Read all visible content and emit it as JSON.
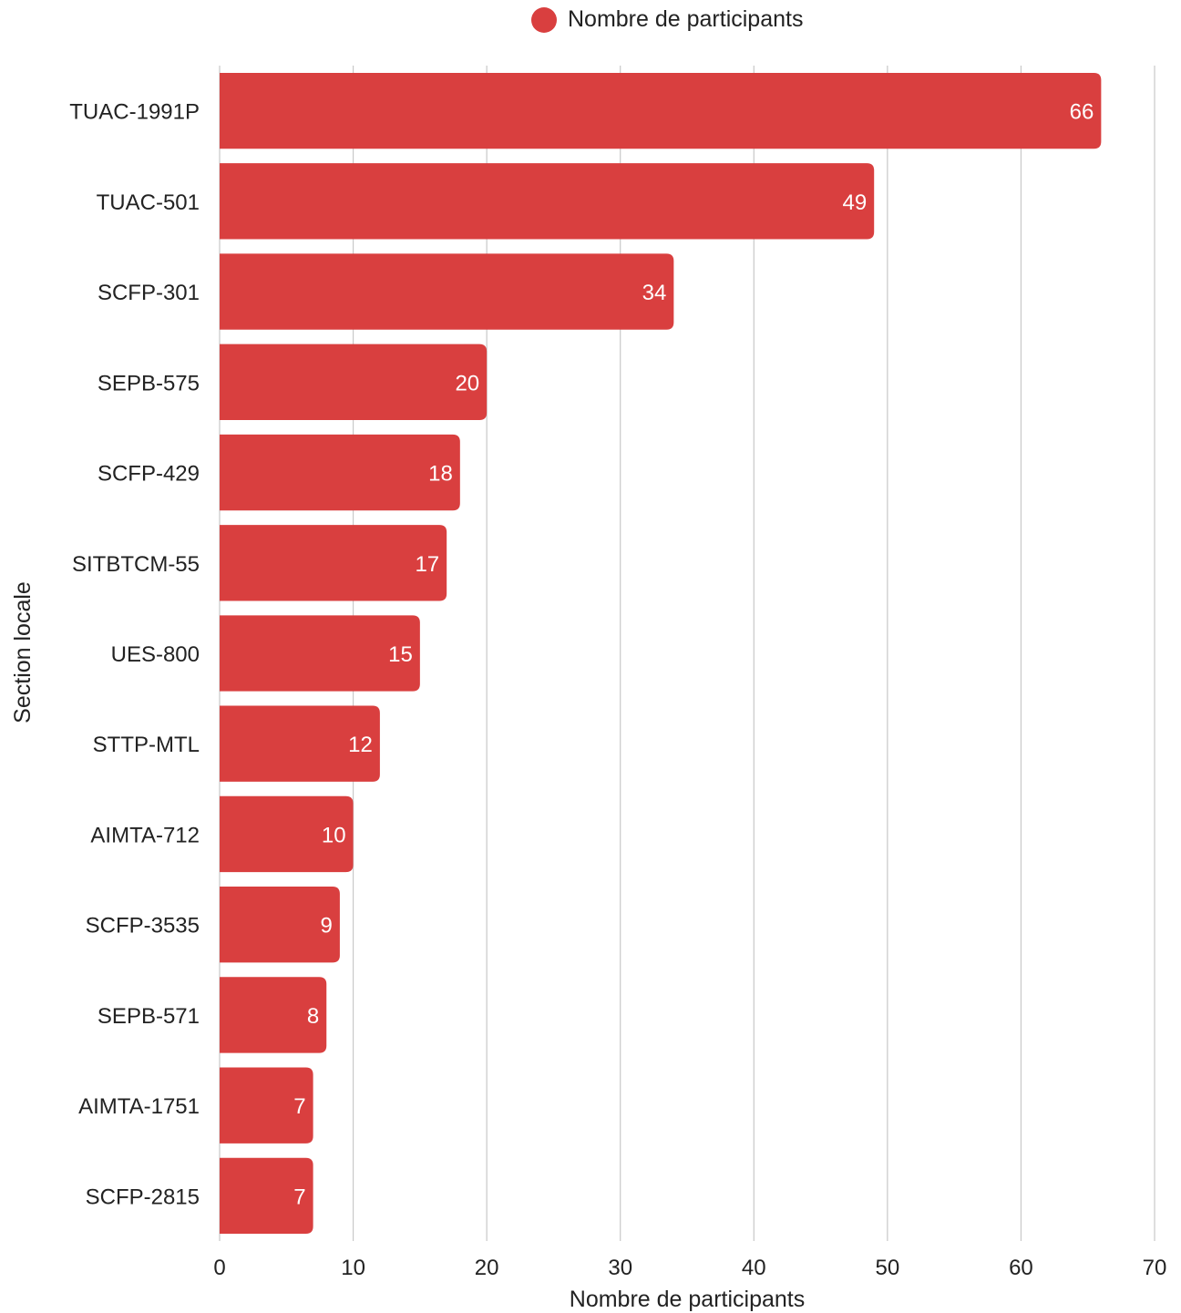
{
  "chart_data": {
    "type": "bar",
    "orientation": "horizontal",
    "categories": [
      "TUAC-1991P",
      "TUAC-501",
      "SCFP-301",
      "SEPB-575",
      "SCFP-429",
      "SITBTCM-55",
      "UES-800",
      "STTP-MTL",
      "AIMTA-712",
      "SCFP-3535",
      "SEPB-571",
      "AIMTA-1751",
      "SCFP-2815"
    ],
    "series": [
      {
        "name": "Nombre de participants",
        "values": [
          66,
          49,
          34,
          20,
          18,
          17,
          15,
          12,
          10,
          9,
          8,
          7,
          7
        ],
        "color": "#d93f3f"
      }
    ],
    "xlabel": "Nombre de participants",
    "ylabel": "Section locale",
    "xlim": [
      0,
      70
    ],
    "xticks": [
      0,
      10,
      20,
      30,
      40,
      50,
      60,
      70
    ],
    "grid": true,
    "legend_position": "top-center",
    "data_labels": true
  }
}
